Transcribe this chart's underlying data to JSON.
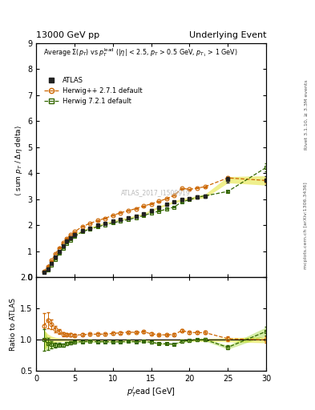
{
  "title_left": "13000 GeV pp",
  "title_right": "Underlying Event",
  "right_label_top": "Rivet 3.1.10, ≥ 3.3M events",
  "right_label_mid": "mcplots.cern.ch [arXiv:1306.3436]",
  "watermark": "ATLAS_2017_I1509919",
  "ylim_main": [
    0,
    9
  ],
  "ylim_ratio": [
    0.5,
    2.0
  ],
  "xlim": [
    0,
    30
  ],
  "atlas_x": [
    1.0,
    1.5,
    2.0,
    2.5,
    3.0,
    3.5,
    4.0,
    4.5,
    5.0,
    6.0,
    7.0,
    8.0,
    9.0,
    10.0,
    11.0,
    12.0,
    13.0,
    14.0,
    15.0,
    16.0,
    17.0,
    18.0,
    19.0,
    20.0,
    21.0,
    22.0,
    25.0,
    30.0
  ],
  "atlas_y": [
    0.18,
    0.32,
    0.52,
    0.77,
    1.0,
    1.22,
    1.38,
    1.52,
    1.63,
    1.8,
    1.9,
    2.0,
    2.08,
    2.16,
    2.23,
    2.28,
    2.36,
    2.43,
    2.57,
    2.7,
    2.8,
    2.9,
    2.98,
    3.02,
    3.08,
    3.12,
    3.75,
    3.72
  ],
  "atlas_yerr": [
    0.03,
    0.03,
    0.03,
    0.03,
    0.03,
    0.03,
    0.03,
    0.03,
    0.03,
    0.03,
    0.03,
    0.03,
    0.03,
    0.03,
    0.03,
    0.03,
    0.03,
    0.03,
    0.04,
    0.04,
    0.04,
    0.04,
    0.05,
    0.05,
    0.06,
    0.07,
    0.12,
    0.18
  ],
  "herwig_pp_x": [
    1.0,
    1.5,
    2.0,
    2.5,
    3.0,
    3.5,
    4.0,
    4.5,
    5.0,
    6.0,
    7.0,
    8.0,
    9.0,
    10.0,
    11.0,
    12.0,
    13.0,
    14.0,
    15.0,
    16.0,
    17.0,
    18.0,
    19.0,
    20.0,
    21.0,
    22.0,
    25.0,
    30.0
  ],
  "herwig_pp_y": [
    0.22,
    0.42,
    0.65,
    0.9,
    1.13,
    1.33,
    1.5,
    1.64,
    1.75,
    1.95,
    2.07,
    2.18,
    2.27,
    2.38,
    2.48,
    2.56,
    2.64,
    2.74,
    2.82,
    2.92,
    3.02,
    3.15,
    3.42,
    3.38,
    3.43,
    3.48,
    3.82,
    3.72
  ],
  "herwig_pp_yerr": [
    0.01,
    0.01,
    0.01,
    0.01,
    0.01,
    0.01,
    0.01,
    0.01,
    0.01,
    0.01,
    0.01,
    0.01,
    0.01,
    0.01,
    0.01,
    0.01,
    0.01,
    0.01,
    0.01,
    0.01,
    0.01,
    0.01,
    0.02,
    0.02,
    0.02,
    0.02,
    0.04,
    0.08
  ],
  "herwig7_x": [
    1.0,
    1.5,
    2.0,
    2.5,
    3.0,
    3.5,
    4.0,
    4.5,
    5.0,
    6.0,
    7.0,
    8.0,
    9.0,
    10.0,
    11.0,
    12.0,
    13.0,
    14.0,
    15.0,
    16.0,
    17.0,
    18.0,
    19.0,
    20.0,
    21.0,
    22.0,
    25.0,
    30.0
  ],
  "herwig7_y": [
    0.18,
    0.3,
    0.48,
    0.7,
    0.92,
    1.12,
    1.3,
    1.44,
    1.57,
    1.75,
    1.85,
    1.94,
    2.02,
    2.09,
    2.16,
    2.22,
    2.29,
    2.37,
    2.47,
    2.54,
    2.62,
    2.7,
    2.9,
    2.98,
    3.08,
    3.13,
    3.3,
    4.22
  ],
  "herwig7_yerr": [
    0.01,
    0.01,
    0.01,
    0.01,
    0.01,
    0.01,
    0.01,
    0.01,
    0.01,
    0.01,
    0.01,
    0.01,
    0.01,
    0.01,
    0.01,
    0.01,
    0.01,
    0.01,
    0.01,
    0.01,
    0.01,
    0.01,
    0.02,
    0.02,
    0.02,
    0.02,
    0.04,
    0.16
  ],
  "atlas_color": "#222222",
  "herwig_pp_color": "#cc6600",
  "herwig7_color": "#336600",
  "atlas_band_color": "#dddd00",
  "atlas_band_alpha": 0.45,
  "herwig7_band_color": "#88cc00",
  "herwig7_band_alpha": 0.35,
  "yticks_main": [
    0,
    1,
    2,
    3,
    4,
    5,
    6,
    7,
    8,
    9
  ],
  "yticks_ratio": [
    0.5,
    1.0,
    1.5,
    2.0
  ]
}
